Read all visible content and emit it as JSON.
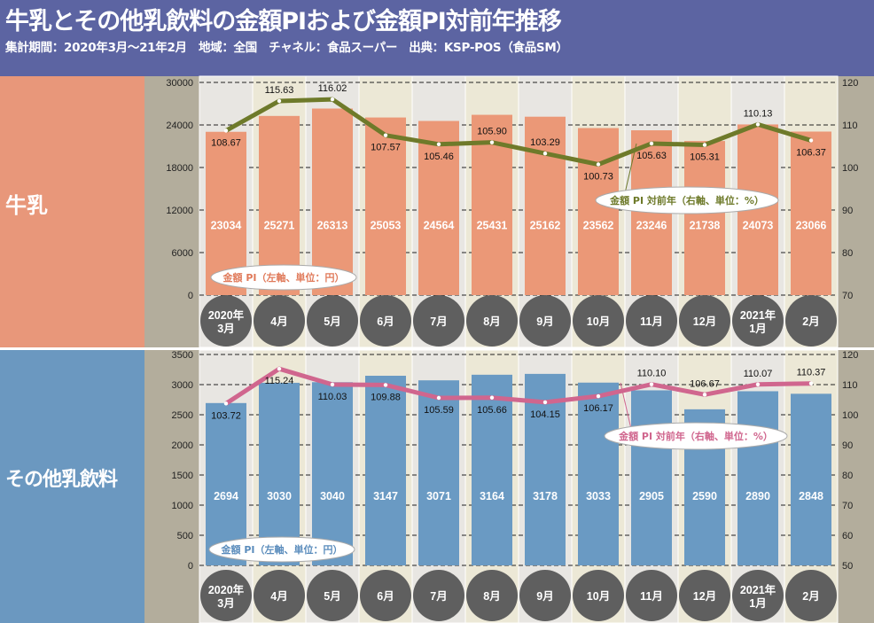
{
  "header": {
    "title": "牛乳とその他乳飲料の金額PIおよび金額PI対前年推移",
    "subtitle": "集計期間：2020年3月～21年2月　地域：全国　チャネル：食品スーパー　出典：KSP-POS（食品SM）"
  },
  "colors": {
    "header": "#5c64a2",
    "milk_panel": "#e8977a",
    "milk_bar": "#eb9877",
    "milk_line": "#6e7a2a",
    "other_panel": "#6b98c0",
    "other_bar": "#6a9ac3",
    "other_line": "#d0668e",
    "month_circle": "#5f5f5f",
    "axis_strip": "#b3ad9c"
  },
  "chart_data": [
    {
      "type": "bar+line",
      "panel_label": "牛乳",
      "categories": [
        [
          "2020年",
          "3月"
        ],
        [
          "4月"
        ],
        [
          "5月"
        ],
        [
          "6月"
        ],
        [
          "7月"
        ],
        [
          "8月"
        ],
        [
          "9月"
        ],
        [
          "10月"
        ],
        [
          "11月"
        ],
        [
          "12月"
        ],
        [
          "2021年",
          "1月"
        ],
        [
          "2月"
        ]
      ],
      "left_axis": {
        "ticks": [
          "0",
          "6000",
          "12000",
          "18000",
          "24000",
          "30000"
        ],
        "range": [
          0,
          30000
        ]
      },
      "right_axis": {
        "ticks": [
          "70",
          "80",
          "90",
          "100",
          "110",
          "120"
        ],
        "range": [
          70,
          120
        ]
      },
      "bar_series": {
        "name": "金額 PI（左軸、単位：円）",
        "values": [
          23034,
          25271,
          26313,
          25053,
          24564,
          25431,
          25162,
          23562,
          23246,
          21738,
          24073,
          23066
        ]
      },
      "line_series": {
        "name": "金額 PI 対前年（右軸、単位：%）",
        "values": [
          108.67,
          115.63,
          116.02,
          107.57,
          105.46,
          105.9,
          103.29,
          100.73,
          105.63,
          105.31,
          110.13,
          106.37
        ],
        "labels": [
          "108.67",
          "115.63",
          "116.02",
          "107.57",
          "105.46",
          "105.90",
          "103.29",
          "100.73",
          "105.63",
          "105.31",
          "110.13",
          "106.37"
        ]
      },
      "grid": true
    },
    {
      "type": "bar+line",
      "panel_label": "その他乳飲料",
      "categories": [
        [
          "2020年",
          "3月"
        ],
        [
          "4月"
        ],
        [
          "5月"
        ],
        [
          "6月"
        ],
        [
          "7月"
        ],
        [
          "8月"
        ],
        [
          "9月"
        ],
        [
          "10月"
        ],
        [
          "11月"
        ],
        [
          "12月"
        ],
        [
          "2021年",
          "1月"
        ],
        [
          "2月"
        ]
      ],
      "left_axis": {
        "ticks": [
          "0",
          "500",
          "1000",
          "1500",
          "2000",
          "2500",
          "3000",
          "3500"
        ],
        "range": [
          0,
          3500
        ]
      },
      "right_axis": {
        "ticks": [
          "50",
          "60",
          "70",
          "80",
          "90",
          "100",
          "110",
          "120"
        ],
        "range": [
          50,
          120
        ]
      },
      "bar_series": {
        "name": "金額 PI（左軸、単位：円）",
        "values": [
          2694,
          3030,
          3040,
          3147,
          3071,
          3164,
          3178,
          3033,
          2905,
          2590,
          2890,
          2848
        ]
      },
      "line_series": {
        "name": "金額 PI 対前年（右軸、単位：%）",
        "values": [
          103.72,
          115.24,
          110.03,
          109.88,
          105.59,
          105.66,
          104.15,
          106.17,
          110.1,
          106.67,
          110.07,
          110.37
        ],
        "labels": [
          "103.72",
          "115.24",
          "110.03",
          "109.88",
          "105.59",
          "105.66",
          "104.15",
          "106.17",
          "110.10",
          "106.67",
          "110.07",
          "110.37"
        ]
      },
      "grid": true
    }
  ]
}
